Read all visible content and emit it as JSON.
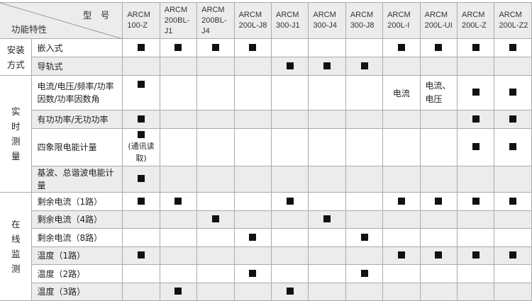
{
  "header": {
    "model_label": "型　号",
    "feature_label": "功能特性",
    "models": [
      [
        "ARCM",
        "100-Z"
      ],
      [
        "ARCM",
        "200BL-J1"
      ],
      [
        "ARCM",
        "200BL-J4"
      ],
      [
        "ARCM",
        "200L-J8"
      ],
      [
        "ARCM",
        "300-J1"
      ],
      [
        "ARCM",
        "300-J4"
      ],
      [
        "ARCM",
        "300-J8"
      ],
      [
        "ARCM",
        "200L-I"
      ],
      [
        "ARCM",
        "200L-UI"
      ],
      [
        "ARCM",
        "200L-Z"
      ],
      [
        "ARCM",
        "200L-Z2"
      ]
    ]
  },
  "groups": [
    {
      "label": "安装方式",
      "rows": [
        {
          "feature": "嵌入式",
          "cells": [
            "■",
            "■",
            "■",
            "■",
            "",
            "",
            "",
            "■",
            "■",
            "■",
            "■"
          ]
        },
        {
          "feature": "导轨式",
          "cells": [
            "",
            "",
            "",
            "",
            "■",
            "■",
            "■",
            "",
            "",
            "",
            ""
          ]
        }
      ]
    },
    {
      "label": "实时测量",
      "rows": [
        {
          "feature": "电流/电压/频率/功率因数/功率因数角",
          "cells": [
            "■",
            "",
            "",
            "",
            "",
            "",
            "",
            "电流",
            "电流、电压",
            "■",
            "■"
          ]
        },
        {
          "feature": "有功功率/无功功率",
          "cells": [
            "■",
            "",
            "",
            "",
            "",
            "",
            "",
            "",
            "",
            "■",
            "■"
          ]
        },
        {
          "feature": "四象限电能计量",
          "cells": [
            "■|(通讯读取)",
            "",
            "",
            "",
            "",
            "",
            "",
            "",
            "",
            "■",
            "■"
          ]
        },
        {
          "feature": "基波、总谐波电能计量",
          "cells": [
            "■",
            "",
            "",
            "",
            "",
            "",
            "",
            "",
            "",
            "",
            ""
          ]
        }
      ]
    },
    {
      "label": "在线监测",
      "rows": [
        {
          "feature": "剩余电流（1路）",
          "cells": [
            "■",
            "■",
            "",
            "",
            "■",
            "",
            "",
            "■",
            "■",
            "■",
            "■"
          ]
        },
        {
          "feature": "剩余电流（4路）",
          "cells": [
            "",
            "",
            "■",
            "",
            "",
            "■",
            "",
            "",
            "",
            "",
            ""
          ]
        },
        {
          "feature": "剩余电流（8路）",
          "cells": [
            "",
            "",
            "",
            "■",
            "",
            "",
            "■",
            "",
            "",
            "",
            ""
          ]
        },
        {
          "feature": "温度（1路）",
          "cells": [
            "■",
            "",
            "",
            "",
            "",
            "",
            "",
            "■",
            "■",
            "■",
            "■"
          ]
        },
        {
          "feature": "温度（2路）",
          "cells": [
            "",
            "",
            "",
            "■",
            "",
            "",
            "■",
            "",
            "",
            "",
            ""
          ]
        },
        {
          "feature": "温度（3路）",
          "cells": [
            "",
            "■",
            "",
            "",
            "■",
            "",
            "",
            "",
            "",
            "",
            ""
          ]
        }
      ]
    }
  ],
  "colors": {
    "header_bg": "#ececec",
    "alt_row_bg": "#ececec",
    "grid": "#aaaaaa",
    "mark": "#111111"
  }
}
